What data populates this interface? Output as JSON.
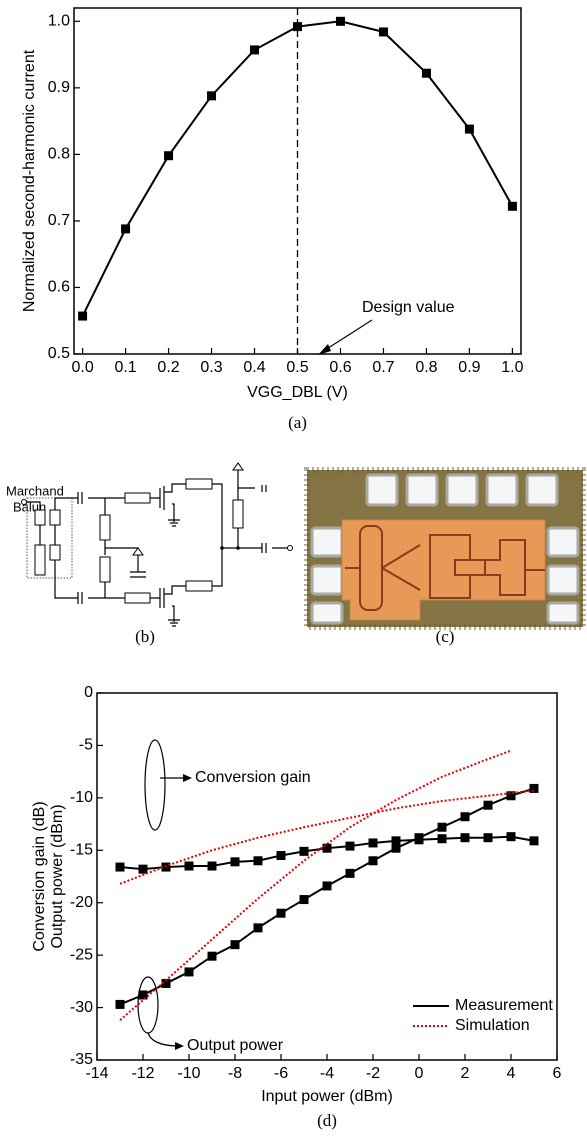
{
  "chart_data": [
    {
      "type": "line",
      "caption": "(a)",
      "x_label": "VGG_DBL (V)",
      "y_label": [
        "Normalized second-harmonic current"
      ],
      "x": [
        0,
        0.1,
        0.2,
        0.3,
        0.4,
        0.5,
        0.6,
        0.7,
        0.8,
        0.9,
        1.0
      ],
      "series": [
        {
          "color": "#000000",
          "dash": "solid",
          "marker": "square",
          "values": [
            0.557,
            0.688,
            0.798,
            0.888,
            0.957,
            0.992,
            1.0,
            0.984,
            0.922,
            0.838,
            0.722
          ]
        }
      ],
      "xlim": [
        -0.02,
        1.02
      ],
      "ylim": [
        0.5,
        1.02
      ],
      "xticks": [
        {
          "value": 0,
          "label": "0.0"
        },
        0.1,
        0.2,
        0.3,
        0.4,
        0.5,
        0.6,
        0.7,
        0.8,
        0.9,
        {
          "value": 1,
          "label": "1.0"
        }
      ],
      "yticks": [
        0.5,
        0.6,
        0.7,
        0.8,
        0.9,
        {
          "value": 1,
          "label": "1.0"
        }
      ],
      "vline": 0.5,
      "annotation": "Design value",
      "grid": false
    },
    {
      "type": "line",
      "caption": "(d)",
      "x_label": "Input power (dBm)",
      "y_label": [
        "Conversion gain (dB)",
        "Output power (dBm)"
      ],
      "series": [
        {
          "name": "Measurement",
          "color": "#000000",
          "dash": "solid",
          "marker": "square",
          "x": [
            -13,
            -12,
            -11,
            -10,
            -9,
            -8,
            -7,
            -6,
            -5,
            -4,
            -3,
            -2,
            -1,
            0,
            1,
            2,
            3,
            4,
            5
          ],
          "values": [
            -16.6,
            -16.8,
            -16.6,
            -16.5,
            -16.5,
            -16.1,
            -16.0,
            -15.5,
            -15.1,
            -14.8,
            -14.6,
            -14.3,
            -14.1,
            -14.0,
            -13.9,
            -13.8,
            -13.8,
            -13.7,
            -14.1
          ]
        },
        {
          "name": "Measurement",
          "color": "#000000",
          "dash": "solid",
          "marker": "square",
          "x": [
            -13,
            -12,
            -11,
            -10,
            -9,
            -8,
            -7,
            -6,
            -5,
            -4,
            -3,
            -2,
            -1,
            0,
            1,
            2,
            3,
            4,
            5
          ],
          "values": [
            -29.7,
            -28.8,
            -27.7,
            -26.6,
            -25.1,
            -24.0,
            -22.4,
            -21.0,
            -19.7,
            -18.4,
            -17.2,
            -16.0,
            -14.8,
            -13.8,
            -12.8,
            -11.8,
            -10.7,
            -9.8,
            -9.1
          ]
        },
        {
          "name": "Simulation",
          "color": "#e00000",
          "dash": "dotted",
          "x": [
            -13,
            -11,
            -9,
            -7,
            -5,
            -3,
            -1,
            1,
            3,
            5
          ],
          "values": [
            -18.2,
            -16.5,
            -15.0,
            -13.8,
            -12.8,
            -11.9,
            -11.0,
            -10.3,
            -9.8,
            -9.3
          ]
        },
        {
          "name": "Simulation",
          "color": "#e00000",
          "dash": "dotted",
          "x": [
            -13,
            -11,
            -9,
            -7,
            -5,
            -3,
            -1,
            1,
            3,
            4
          ],
          "values": [
            -31.2,
            -27.4,
            -23.5,
            -19.6,
            -16.0,
            -12.8,
            -10.2,
            -8.0,
            -6.3,
            -5.5
          ]
        }
      ],
      "xlim": [
        -14,
        6
      ],
      "ylim": [
        -35,
        0
      ],
      "xticks": [
        -14,
        -12,
        -10,
        -8,
        -6,
        -4,
        -2,
        0,
        2,
        4,
        6
      ],
      "yticks": [
        -35,
        -30,
        -25,
        -20,
        -15,
        -10,
        -5,
        0
      ],
      "annotations": [
        "Conversion gain",
        "Output power"
      ],
      "legend": "lower right",
      "grid": false
    }
  ],
  "diagram": {
    "labels": [
      "Marchand",
      "Balun"
    ],
    "caption": "(b)"
  },
  "photo": {
    "caption": "(c)"
  }
}
